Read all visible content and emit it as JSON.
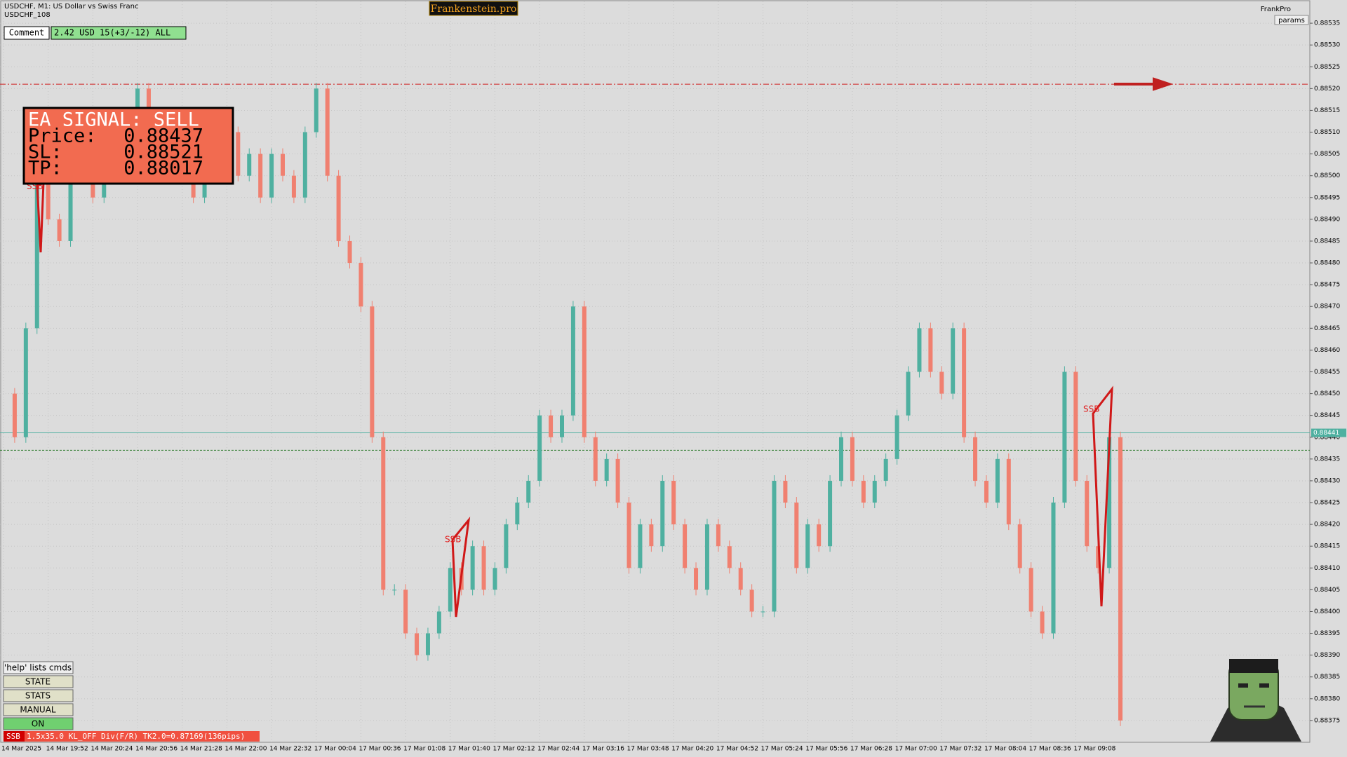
{
  "header": {
    "symbol": "USDCHF, M1:  US Dollar vs Swiss Franc",
    "account": "USDCHF_108",
    "brand": "Frankenstein.pro",
    "user": "FrankPro",
    "params": "params"
  },
  "comment": {
    "label": "Comment",
    "text": "2.42 USD 15(+3/-12) ALL"
  },
  "signal": {
    "title": "EA SIGNAL: SELL",
    "rows": [
      [
        "Price:",
        "0.88437"
      ],
      [
        "SL:",
        "0.88521"
      ],
      [
        "TP:",
        "0.88017"
      ]
    ]
  },
  "buttons": [
    "'help' lists cmds",
    "STATE",
    "STATS",
    "MANUAL",
    "ON"
  ],
  "status": {
    "tag": "SSB",
    "text": "1.5x35.0 KL_OFF Div(F/R) TK2.0=0.87169(136pips)"
  },
  "trade_tags": [
    "SSB",
    "SSB",
    "SSB"
  ],
  "chart_data": {
    "type": "candle",
    "up_color": "#4fb0a0",
    "down_color": "#f08070",
    "values": [
      0.8845,
      0.8844,
      0.88465,
      0.885,
      0.8849,
      0.88485,
      0.885,
      0.88505,
      0.88495,
      0.8851,
      0.88505,
      0.885,
      0.8852,
      0.88505,
      0.8851,
      0.88505,
      0.885,
      0.88495,
      0.885,
      0.88505,
      0.8851,
      0.885,
      0.88505,
      0.88495,
      0.88505,
      0.885,
      0.88495,
      0.8851,
      0.8852,
      0.885,
      0.88485,
      0.8848,
      0.8847,
      0.8844,
      0.88405,
      0.88405,
      0.88395,
      0.8839,
      0.88395,
      0.884,
      0.8841,
      0.88405,
      0.88415,
      0.88405,
      0.8841,
      0.8842,
      0.88425,
      0.8843,
      0.88445,
      0.8844,
      0.88445,
      0.8847,
      0.8844,
      0.8843,
      0.88435,
      0.88425,
      0.8841,
      0.8842,
      0.88415,
      0.8843,
      0.8842,
      0.8841,
      0.88405,
      0.8842,
      0.88415,
      0.8841,
      0.88405,
      0.884,
      0.884,
      0.8843,
      0.88425,
      0.8841,
      0.8842,
      0.88415,
      0.8843,
      0.8844,
      0.8843,
      0.88425,
      0.8843,
      0.88435,
      0.88445,
      0.88455,
      0.88465,
      0.88455,
      0.8845,
      0.88465,
      0.8844,
      0.8843,
      0.88425,
      0.88435,
      0.8842,
      0.8841,
      0.884,
      0.88395,
      0.88425,
      0.88455,
      0.8843,
      0.88415,
      0.8841,
      0.8844,
      0.88375
    ],
    "x_labels": [
      "14 Mar 2025",
      "14 Mar 19:52",
      "14 Mar 20:24",
      "14 Mar 20:56",
      "14 Mar 21:28",
      "14 Mar 22:00",
      "14 Mar 22:32",
      "17 Mar 00:04",
      "17 Mar 00:36",
      "17 Mar 01:08",
      "17 Mar 01:40",
      "17 Mar 02:12",
      "17 Mar 02:44",
      "17 Mar 03:16",
      "17 Mar 03:48",
      "17 Mar 04:20",
      "17 Mar 04:52",
      "17 Mar 05:24",
      "17 Mar 05:56",
      "17 Mar 06:28",
      "17 Mar 07:00",
      "17 Mar 07:32",
      "17 Mar 08:04",
      "17 Mar 08:36",
      "17 Mar 09:08"
    ],
    "ylim": [
      0.8837,
      0.8854
    ],
    "yticks": [
      0.88375,
      {
        "value": 0.8838,
        "label": "0.88380"
      },
      0.88385,
      {
        "value": 0.8839,
        "label": "0.88390"
      },
      0.88395,
      {
        "value": 0.884,
        "label": "0.88400"
      },
      0.88405,
      {
        "value": 0.8841,
        "label": "0.88410"
      },
      0.88415,
      {
        "value": 0.8842,
        "label": "0.88420"
      },
      0.88425,
      {
        "value": 0.8843,
        "label": "0.88430"
      },
      0.88435,
      {
        "value": 0.8844,
        "label": "0.88440"
      },
      0.88445,
      {
        "value": 0.8845,
        "label": "0.88450"
      },
      0.88455,
      {
        "value": 0.8846,
        "label": "0.88460"
      },
      0.88465,
      {
        "value": 0.8847,
        "label": "0.88470"
      },
      0.88475,
      {
        "value": 0.8848,
        "label": "0.88480"
      },
      0.88485,
      {
        "value": 0.8849,
        "label": "0.88490"
      },
      0.88495,
      {
        "value": 0.885,
        "label": "0.88500"
      },
      0.88505,
      {
        "value": 0.8851,
        "label": "0.88510"
      },
      0.88515,
      {
        "value": 0.8852,
        "label": "0.88520"
      },
      0.88525,
      {
        "value": 0.8853,
        "label": "0.88530"
      },
      0.88535
    ],
    "grid": true,
    "bid": 0.88441,
    "bid_color": "#4fb0a0",
    "hlines": [
      0.88521,
      0.88437
    ],
    "hline_colors": [
      "#d02020",
      "#2a7a2a"
    ]
  }
}
